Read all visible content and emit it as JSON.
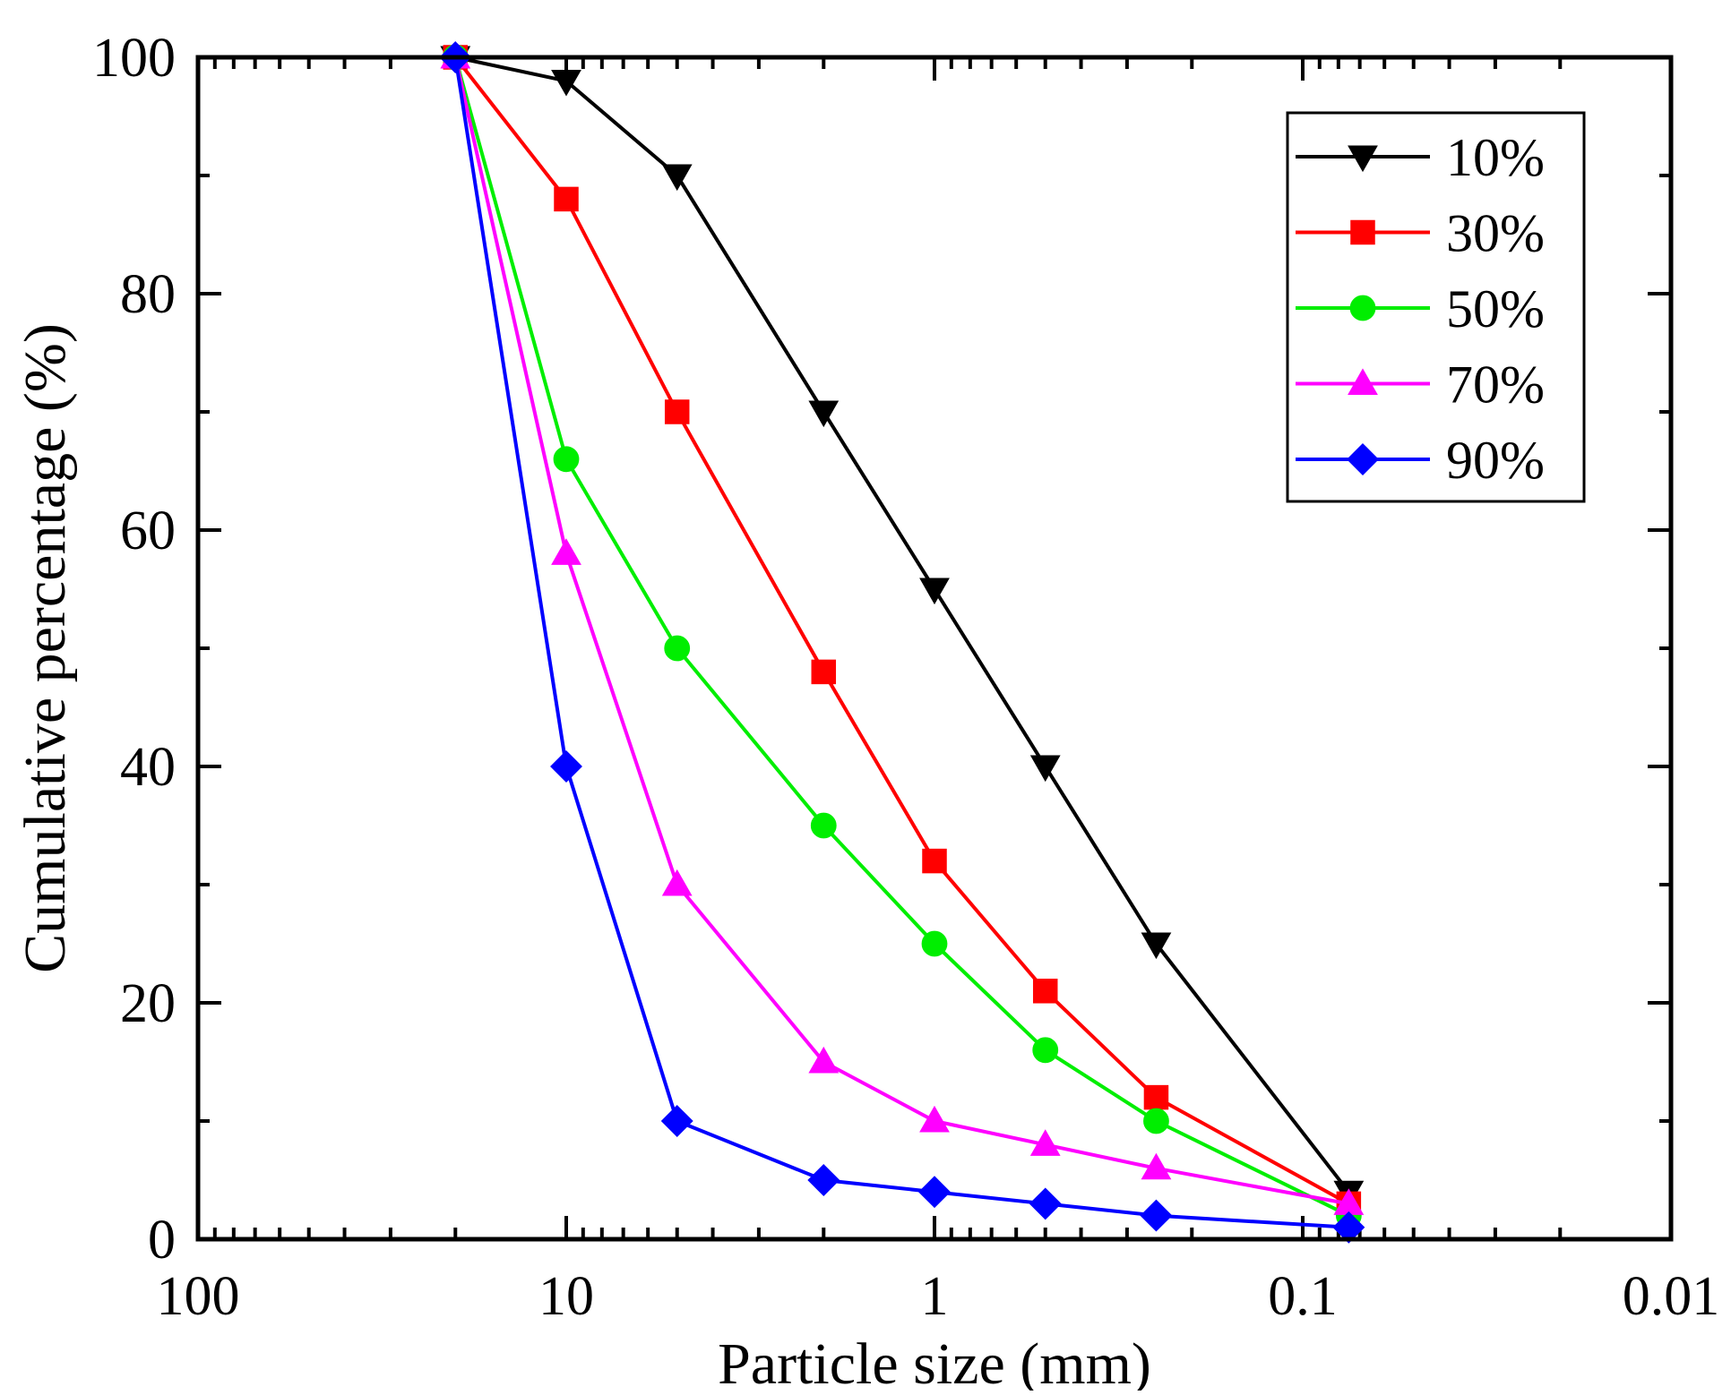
{
  "chart_data": {
    "type": "line",
    "title": "",
    "xlabel": "Particle size (mm)",
    "ylabel": "Cumulative percentage  (%)",
    "x_scale": "log",
    "x_reversed": true,
    "xlim": [
      100,
      0.01
    ],
    "ylim": [
      0,
      100
    ],
    "x_ticks": [
      100,
      10,
      1,
      0.1,
      0.01
    ],
    "x_tick_labels": [
      "100",
      "10",
      "1",
      "0.1",
      "0.01"
    ],
    "y_ticks": [
      0,
      20,
      40,
      60,
      80,
      100
    ],
    "y_tick_labels": [
      "0",
      "20",
      "40",
      "60",
      "80",
      "100"
    ],
    "grid": false,
    "legend_position": "top-right",
    "x": [
      20,
      10,
      5,
      2,
      1,
      0.5,
      0.25,
      0.075
    ],
    "series": [
      {
        "name": "10%",
        "color": "#000000",
        "marker": "triangle-down",
        "values": [
          100,
          98,
          90,
          70,
          55,
          40,
          25,
          4
        ]
      },
      {
        "name": "30%",
        "color": "#ff0000",
        "marker": "square",
        "values": [
          100,
          88,
          70,
          48,
          32,
          21,
          12,
          3
        ]
      },
      {
        "name": "50%",
        "color": "#00ee00",
        "marker": "circle",
        "values": [
          100,
          66,
          50,
          35,
          25,
          16,
          10,
          2
        ]
      },
      {
        "name": "70%",
        "color": "#ff00ff",
        "marker": "triangle-up",
        "values": [
          100,
          58,
          30,
          15,
          10,
          8,
          6,
          3
        ]
      },
      {
        "name": "90%",
        "color": "#0000ff",
        "marker": "diamond",
        "values": [
          100,
          40,
          10,
          5,
          4,
          3,
          2,
          1
        ]
      }
    ]
  }
}
